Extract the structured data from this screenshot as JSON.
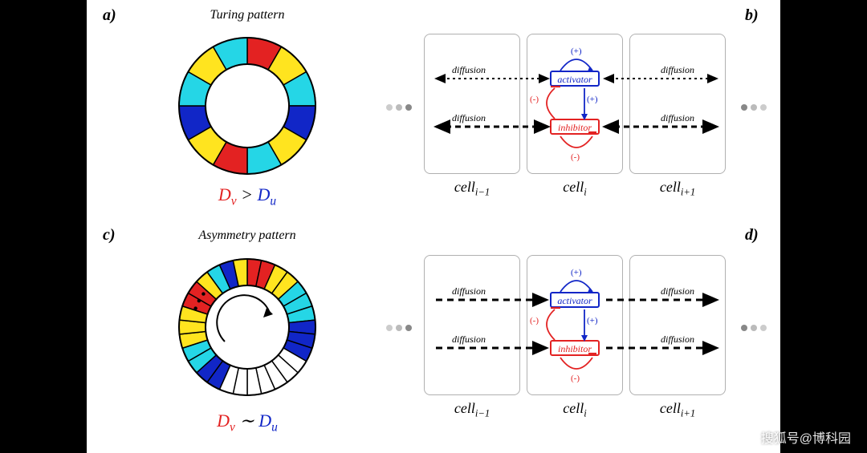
{
  "background": "#000000",
  "canvas_bg": "#ffffff",
  "watermark": "搜狐号@博科园",
  "panel_a": {
    "label": "a)",
    "title": "Turing pattern",
    "ring": {
      "outer_r": 85,
      "inner_r": 52,
      "segments": 12,
      "colors": [
        "#e32222",
        "#ffe41f",
        "#25d6e6",
        "#1126c7",
        "#ffe41f",
        "#25d6e6",
        "#e32222",
        "#ffe41f",
        "#1126c7",
        "#25d6e6",
        "#ffe41f",
        "#25d6e6"
      ]
    },
    "equation": {
      "Dv": "D",
      "v": "v",
      "op": ">",
      "Du": "D",
      "u": "u"
    }
  },
  "panel_c": {
    "label": "c)",
    "title": "Asymmetry pattern",
    "ring": {
      "outer_r": 85,
      "inner_r": 52,
      "segments": 30,
      "colors": [
        "#e32222",
        "#e32222",
        "#ffe41f",
        "#ffe41f",
        "#25d6e6",
        "#25d6e6",
        "#25d6e6",
        "#1126c7",
        "#1126c7",
        "#1126c7",
        "#ffffff",
        "#ffffff",
        "#ffffff",
        "#ffffff",
        "#ffffff",
        "#ffffff",
        "#ffffff",
        "#1126c7",
        "#1126c7",
        "#25d6e6",
        "#25d6e6",
        "#ffe41f",
        "#ffe41f",
        "#ffe41f",
        "#e32222",
        "#e32222",
        "#ffe41f",
        "#25d6e6",
        "#1126c7",
        "#ffe41f"
      ]
    },
    "arrow_dots": "...",
    "equation": {
      "Dv": "D",
      "v": "v",
      "op": "∼",
      "Du": "D",
      "u": "u"
    }
  },
  "panel_b": {
    "label": "b)",
    "cells": [
      {
        "label_prefix": "cell",
        "label_sub": "i−1"
      },
      {
        "label_prefix": "cell",
        "label_sub": "i"
      },
      {
        "label_prefix": "cell",
        "label_sub": "i+1"
      }
    ],
    "activator": {
      "text": "activator",
      "color": "#1126c7"
    },
    "inhibitor": {
      "text": "inhibitor",
      "color": "#e32222"
    },
    "diffusion_label": "diffusion",
    "signs": {
      "plus": "(+)",
      "minus": "(-)"
    },
    "arrow_style": "bidirectional_dashed"
  },
  "panel_d": {
    "label": "d)",
    "cells": [
      {
        "label_prefix": "cell",
        "label_sub": "i−1"
      },
      {
        "label_prefix": "cell",
        "label_sub": "i"
      },
      {
        "label_prefix": "cell",
        "label_sub": "i+1"
      }
    ],
    "activator": {
      "text": "activator",
      "color": "#1126c7"
    },
    "inhibitor": {
      "text": "inhibitor",
      "color": "#e32222"
    },
    "diffusion_label": "diffusion",
    "signs": {
      "plus": "(+)",
      "minus": "(-)"
    },
    "arrow_style": "unidirectional_dashed"
  },
  "ellipsis": {
    "left_dots": [
      "#cccccc",
      "#bbbbbb",
      "#888888"
    ],
    "right_dots": [
      "#888888",
      "#bbbbbb",
      "#cccccc"
    ]
  },
  "colors": {
    "activator": "#1126c7",
    "inhibitor": "#e32222",
    "cell_border": "#b0b0b0",
    "arrow": "#000000"
  }
}
